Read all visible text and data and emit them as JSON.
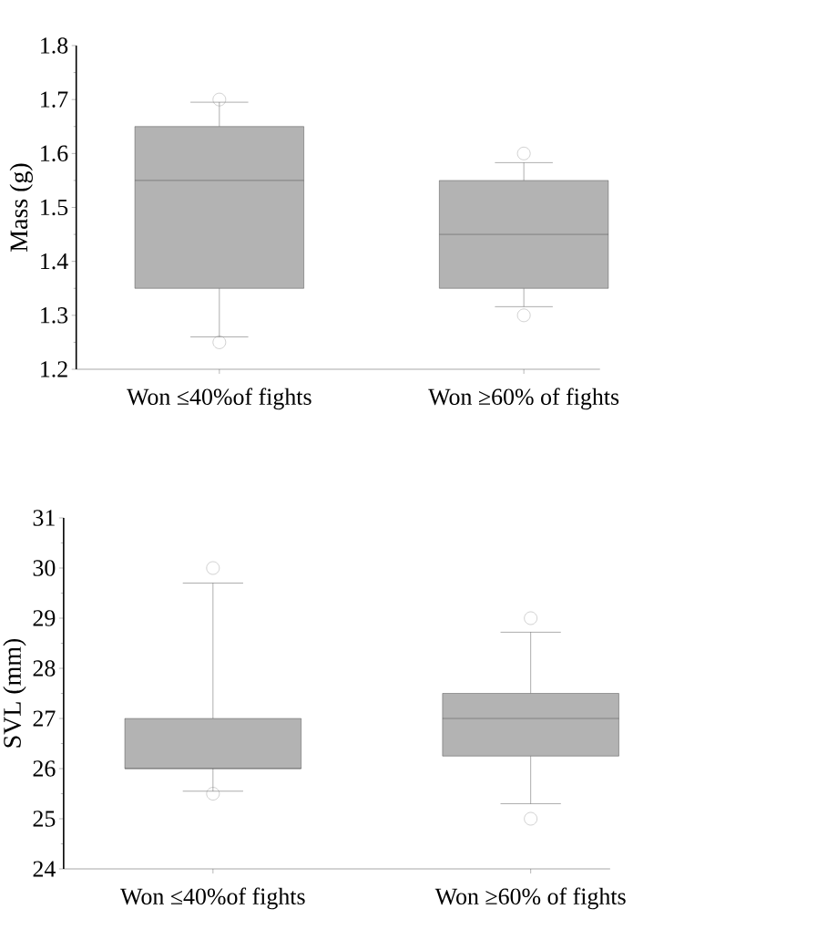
{
  "chart_data": [
    {
      "type": "box",
      "ylabel": "Mass (g)",
      "categories": [
        "Won ≤40%of fights",
        "Won ≥60% of fights"
      ],
      "ylim": [
        1.2,
        1.8
      ],
      "yticks": [
        1.2,
        1.3,
        1.4,
        1.5,
        1.6,
        1.7,
        1.8
      ],
      "marker": "circle",
      "grid": false,
      "series": [
        {
          "color": "#b3b3b3",
          "boxes": [
            {
              "low": 1.26,
              "q1": 1.35,
              "median": 1.55,
              "q3": 1.65,
              "high": 1.695,
              "outliers": [
                1.7,
                1.25
              ]
            },
            {
              "low": 1.316,
              "q1": 1.35,
              "median": 1.45,
              "q3": 1.55,
              "high": 1.583,
              "outliers": [
                1.6,
                1.3
              ]
            }
          ]
        }
      ]
    },
    {
      "type": "box",
      "ylabel": "SVL (mm)",
      "categories": [
        "Won ≤40%of fights",
        "Won ≥60% of fights"
      ],
      "ylim": [
        24,
        31
      ],
      "yticks": [
        24,
        25,
        26,
        27,
        28,
        29,
        30,
        31
      ],
      "marker": "circle",
      "grid": false,
      "series": [
        {
          "color": "#b3b3b3",
          "boxes": [
            {
              "low": 25.55,
              "q1": 26,
              "median": 26,
              "q3": 27,
              "high": 29.7,
              "outliers": [
                30,
                25.5
              ]
            },
            {
              "low": 25.3,
              "q1": 26.25,
              "median": 27,
              "q3": 27.5,
              "high": 28.72,
              "outliers": [
                29,
                25
              ]
            }
          ]
        }
      ]
    }
  ]
}
